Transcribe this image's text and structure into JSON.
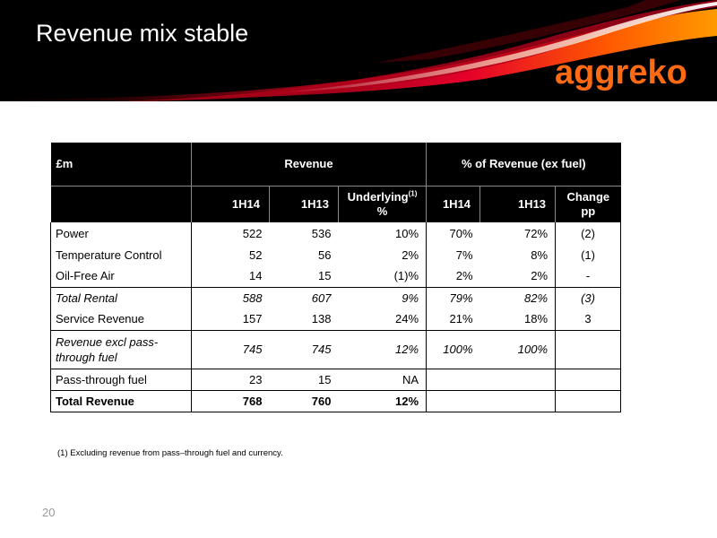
{
  "slide": {
    "title": "Revenue mix stable",
    "logo_text": "aggreko",
    "page_number": "20",
    "footnote": "(1) Excluding revenue from pass–through fuel and currency."
  },
  "colors": {
    "header_bg": "#000000",
    "brand_orange": "#ff6a13",
    "swoosh_red": "#c8102e"
  },
  "table": {
    "group_headers": {
      "unit": "£m",
      "revenue": "Revenue",
      "pct_revenue": "% of Revenue (ex fuel)"
    },
    "columns": {
      "c1": "1H14",
      "c2": "1H13",
      "c3_main": "Underlying",
      "c3_sup": "(1)",
      "c3_sub": "%",
      "c4": "1H14",
      "c5": "1H13",
      "c6_line1": "Change",
      "c6_line2": "pp"
    },
    "rows": [
      {
        "label": "Power",
        "r14": "522",
        "r13": "536",
        "underlying": "10%",
        "p14": "70%",
        "p13": "72%",
        "change": "(2)"
      },
      {
        "label": "Temperature Control",
        "r14": "52",
        "r13": "56",
        "underlying": "2%",
        "p14": "7%",
        "p13": "8%",
        "change": "(1)"
      },
      {
        "label": "Oil-Free Air",
        "r14": "14",
        "r13": "15",
        "underlying": "(1)%",
        "p14": "2%",
        "p13": "2%",
        "change": "-"
      },
      {
        "label": "Total Rental",
        "r14": "588",
        "r13": "607",
        "underlying": "9%",
        "p14": "79%",
        "p13": "82%",
        "change": "(3)"
      },
      {
        "label": "Service Revenue",
        "r14": "157",
        "r13": "138",
        "underlying": "24%",
        "p14": "21%",
        "p13": "18%",
        "change": "3"
      },
      {
        "label": "Revenue excl pass-through fuel",
        "r14": "745",
        "r13": "745",
        "underlying": "12%",
        "p14": "100%",
        "p13": "100%",
        "change": ""
      },
      {
        "label": "Pass-through fuel",
        "r14": "23",
        "r13": "15",
        "underlying": "NA",
        "p14": "",
        "p13": "",
        "change": ""
      },
      {
        "label": "Total Revenue",
        "r14": "768",
        "r13": "760",
        "underlying": "12%",
        "p14": "",
        "p13": "",
        "change": ""
      }
    ]
  }
}
